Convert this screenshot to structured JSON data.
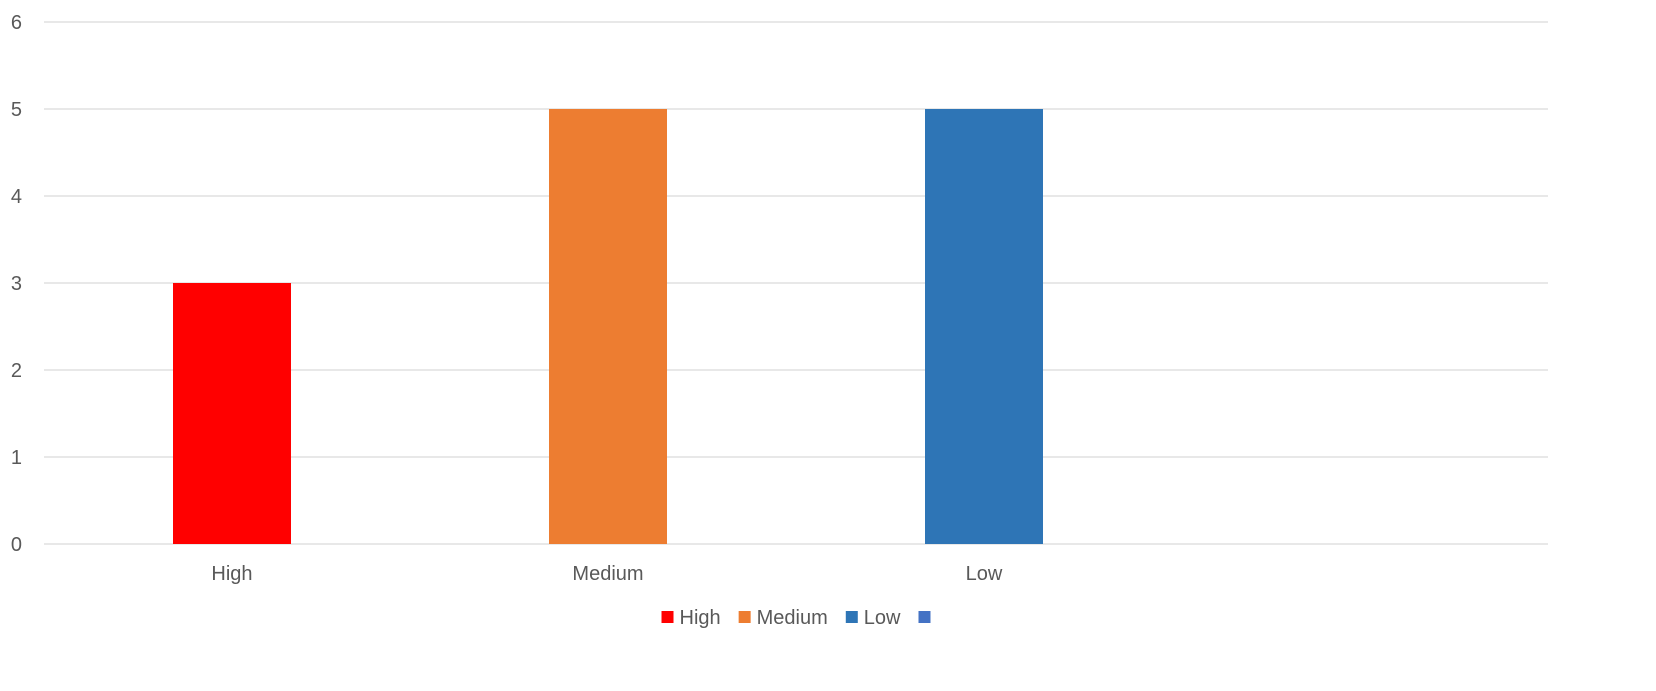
{
  "chart_data": {
    "type": "bar",
    "categories": [
      "High",
      "Medium",
      "Low"
    ],
    "values": [
      3,
      5,
      5
    ],
    "colors": [
      "#ff0000",
      "#ed7d31",
      "#2e75b6"
    ],
    "ylim": [
      0,
      6
    ],
    "yticks": [
      0,
      1,
      2,
      3,
      4,
      5,
      6
    ],
    "grid": true,
    "legend_position": "bottom",
    "legend": [
      {
        "label": "High",
        "color": "#ff0000"
      },
      {
        "label": "Medium",
        "color": "#ed7d31"
      },
      {
        "label": "Low",
        "color": "#2e75b6"
      },
      {
        "label": "",
        "color": "#4472c4"
      }
    ]
  }
}
